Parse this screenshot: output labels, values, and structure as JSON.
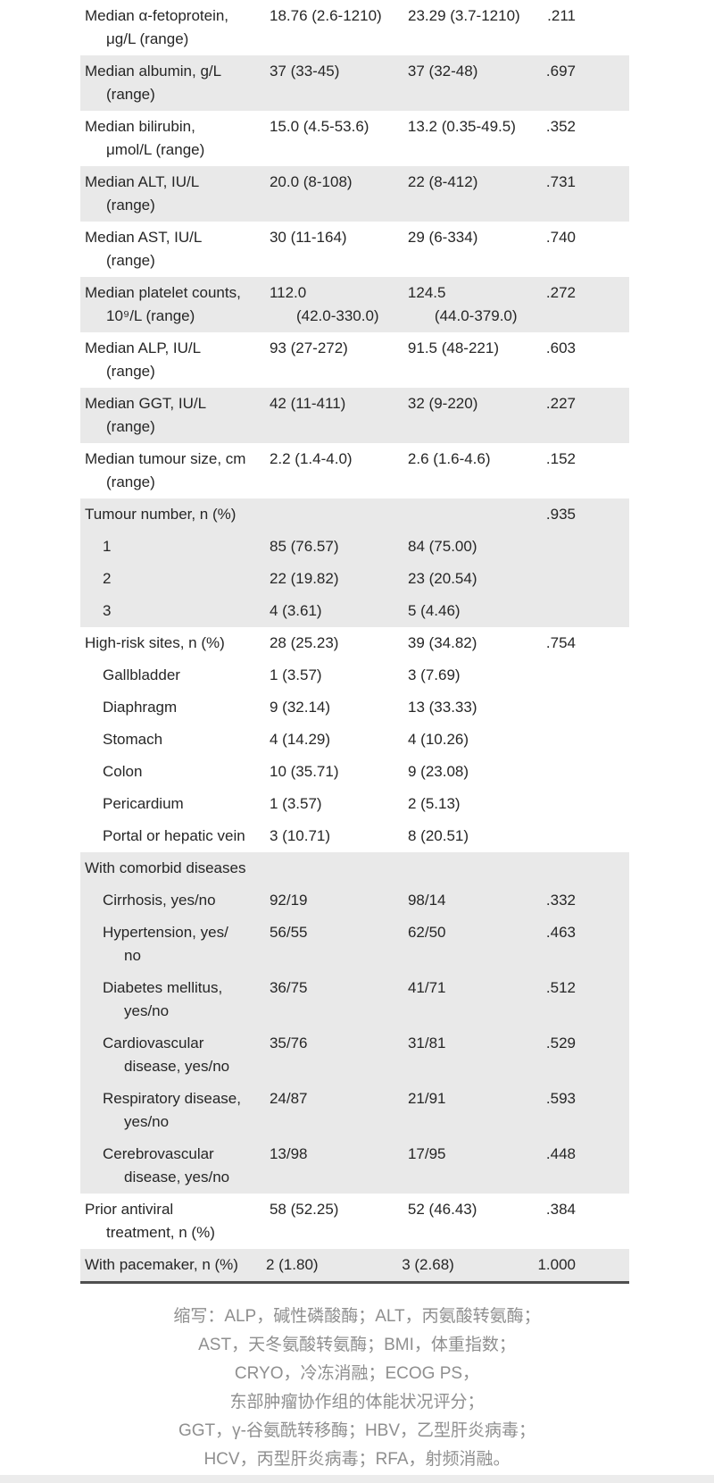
{
  "table": {
    "rows": [
      {
        "cells": [
          "Median α-fetoprotein,\nμg/L (range)",
          "18.76 (2.6-1210)",
          "23.29 (3.7-1210)",
          ".211"
        ],
        "shaded": false,
        "indent": false
      },
      {
        "cells": [
          "Median albumin, g/L\n(range)",
          "37 (33-45)",
          "37 (32-48)",
          ".697"
        ],
        "shaded": true,
        "indent": false
      },
      {
        "cells": [
          "Median bilirubin,\nμmol/L (range)",
          "15.0 (4.5-53.6)",
          "13.2 (0.35-49.5)",
          ".352"
        ],
        "shaded": false,
        "indent": false
      },
      {
        "cells": [
          "Median ALT, IU/L\n(range)",
          "20.0 (8-108)",
          "22 (8-412)",
          ".731"
        ],
        "shaded": true,
        "indent": false
      },
      {
        "cells": [
          "Median AST, IU/L\n(range)",
          "30 (11-164)",
          "29 (6-334)",
          ".740"
        ],
        "shaded": false,
        "indent": false
      },
      {
        "cells": [
          "Median platelet counts,\n10⁹/L (range)",
          "112.0\n(42.0-330.0)",
          "124.5\n(44.0-379.0)",
          ".272"
        ],
        "shaded": true,
        "indent": false
      },
      {
        "cells": [
          "Median ALP, IU/L\n(range)",
          "93 (27-272)",
          "91.5 (48-221)",
          ".603"
        ],
        "shaded": false,
        "indent": false
      },
      {
        "cells": [
          "Median GGT, IU/L\n(range)",
          "42 (11-411)",
          "32 (9-220)",
          ".227"
        ],
        "shaded": true,
        "indent": false
      },
      {
        "cells": [
          "Median tumour size, cm\n(range)",
          "2.2 (1.4-4.0)",
          "2.6 (1.6-4.6)",
          ".152"
        ],
        "shaded": false,
        "indent": false
      },
      {
        "cells": [
          "Tumour number, n (%)",
          "",
          "",
          ".935"
        ],
        "shaded": true,
        "indent": false
      },
      {
        "cells": [
          "1",
          "85 (76.57)",
          "84 (75.00)",
          ""
        ],
        "shaded": true,
        "indent": true
      },
      {
        "cells": [
          "2",
          "22 (19.82)",
          "23 (20.54)",
          ""
        ],
        "shaded": true,
        "indent": true
      },
      {
        "cells": [
          "3",
          "4 (3.61)",
          "5 (4.46)",
          ""
        ],
        "shaded": true,
        "indent": true
      },
      {
        "cells": [
          "High-risk sites, n (%)",
          "28 (25.23)",
          "39 (34.82)",
          ".754"
        ],
        "shaded": false,
        "indent": false
      },
      {
        "cells": [
          "Gallbladder",
          "1 (3.57)",
          "3 (7.69)",
          ""
        ],
        "shaded": false,
        "indent": true
      },
      {
        "cells": [
          "Diaphragm",
          "9 (32.14)",
          "13 (33.33)",
          ""
        ],
        "shaded": false,
        "indent": true
      },
      {
        "cells": [
          "Stomach",
          "4 (14.29)",
          "4 (10.26)",
          ""
        ],
        "shaded": false,
        "indent": true
      },
      {
        "cells": [
          "Colon",
          "10 (35.71)",
          "9 (23.08)",
          ""
        ],
        "shaded": false,
        "indent": true
      },
      {
        "cells": [
          "Pericardium",
          "1 (3.57)",
          "2 (5.13)",
          ""
        ],
        "shaded": false,
        "indent": true
      },
      {
        "cells": [
          "Portal or hepatic vein",
          "3 (10.71)",
          "8 (20.51)",
          ""
        ],
        "shaded": false,
        "indent": true
      },
      {
        "cells": [
          "With comorbid diseases",
          "",
          "",
          ""
        ],
        "shaded": true,
        "indent": false
      },
      {
        "cells": [
          "Cirrhosis, yes/no",
          "92/19",
          "98/14",
          ".332"
        ],
        "shaded": true,
        "indent": true
      },
      {
        "cells": [
          "Hypertension, yes/\nno",
          "56/55",
          "62/50",
          ".463"
        ],
        "shaded": true,
        "indent": true
      },
      {
        "cells": [
          "Diabetes mellitus,\nyes/no",
          "36/75",
          "41/71",
          ".512"
        ],
        "shaded": true,
        "indent": true
      },
      {
        "cells": [
          "Cardiovascular\ndisease, yes/no",
          "35/76",
          "31/81",
          ".529"
        ],
        "shaded": true,
        "indent": true
      },
      {
        "cells": [
          "Respiratory disease,\nyes/no",
          "24/87",
          "21/91",
          ".593"
        ],
        "shaded": true,
        "indent": true
      },
      {
        "cells": [
          "Cerebrovascular\ndisease, yes/no",
          "13/98",
          "17/95",
          ".448"
        ],
        "shaded": true,
        "indent": true
      },
      {
        "cells": [
          "Prior antiviral\ntreatment, n (%)",
          "58 (52.25)",
          "52 (46.43)",
          ".384"
        ],
        "shaded": false,
        "indent": false
      },
      {
        "cells": [
          "With pacemaker, n (%)",
          "2 (1.80)",
          "3 (2.68)",
          "1.000"
        ],
        "shaded": true,
        "indent": false
      }
    ]
  },
  "footnote": {
    "lines": [
      "缩写：ALP，碱性磷酸酶；ALT，丙氨酸转氨酶；",
      "AST，天冬氨酸转氨酶；BMI，体重指数；",
      "CRYO，冷冻消融；ECOG PS，",
      "东部肿瘤协作组的体能状况评分；",
      "GGT，γ-谷氨酰转移酶；HBV，乙型肝炎病毒；",
      "HCV，丙型肝炎病毒；RFA，射频消融。"
    ]
  },
  "colors": {
    "shaded_row": "#e9e9e9",
    "text": "#262626",
    "footnote_text": "#8f8f8f",
    "bottom_border": "#4f4f4f",
    "bottom_bar": "#ececec"
  }
}
